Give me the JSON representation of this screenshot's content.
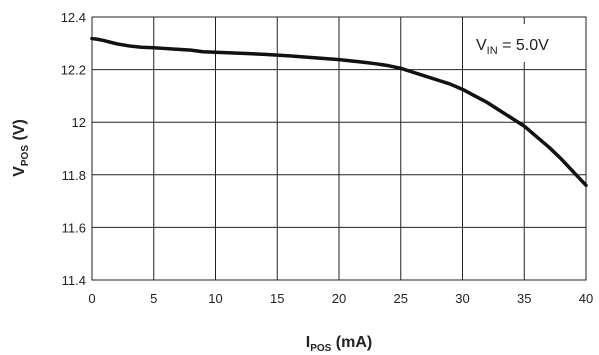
{
  "chart_data": {
    "type": "line",
    "xlabel": {
      "main": "I",
      "sub": "POS",
      "rest": " (mA)"
    },
    "ylabel": {
      "main": "V",
      "sub": "POS",
      "rest": " (V)"
    },
    "annotation": {
      "main": "V",
      "sub": "IN",
      "rest": " = 5.0V"
    },
    "xlim": [
      0,
      40
    ],
    "ylim": [
      11.4,
      12.4
    ],
    "x_ticks": [
      "0",
      "5",
      "10",
      "15",
      "20",
      "25",
      "30",
      "35",
      "40"
    ],
    "y_ticks": [
      "11.4",
      "11.6",
      "11.8",
      "12",
      "12.2",
      "12.4"
    ],
    "grid": true,
    "series": [
      {
        "x": [
          0,
          0.5,
          1,
          2,
          3,
          4,
          5,
          6,
          7,
          8,
          9,
          10,
          12,
          14,
          16,
          18,
          20,
          22,
          23,
          24,
          25,
          26,
          27,
          28,
          29,
          30,
          31,
          32,
          33,
          34,
          35,
          36,
          37,
          38,
          39,
          40
        ],
        "y": [
          12.318,
          12.315,
          12.31,
          12.298,
          12.29,
          12.285,
          12.283,
          12.28,
          12.277,
          12.274,
          12.268,
          12.266,
          12.262,
          12.258,
          12.252,
          12.245,
          12.238,
          12.228,
          12.222,
          12.215,
          12.205,
          12.19,
          12.175,
          12.16,
          12.145,
          12.125,
          12.1,
          12.075,
          12.045,
          12.015,
          11.985,
          11.945,
          11.905,
          11.86,
          11.81,
          11.76
        ]
      }
    ]
  }
}
